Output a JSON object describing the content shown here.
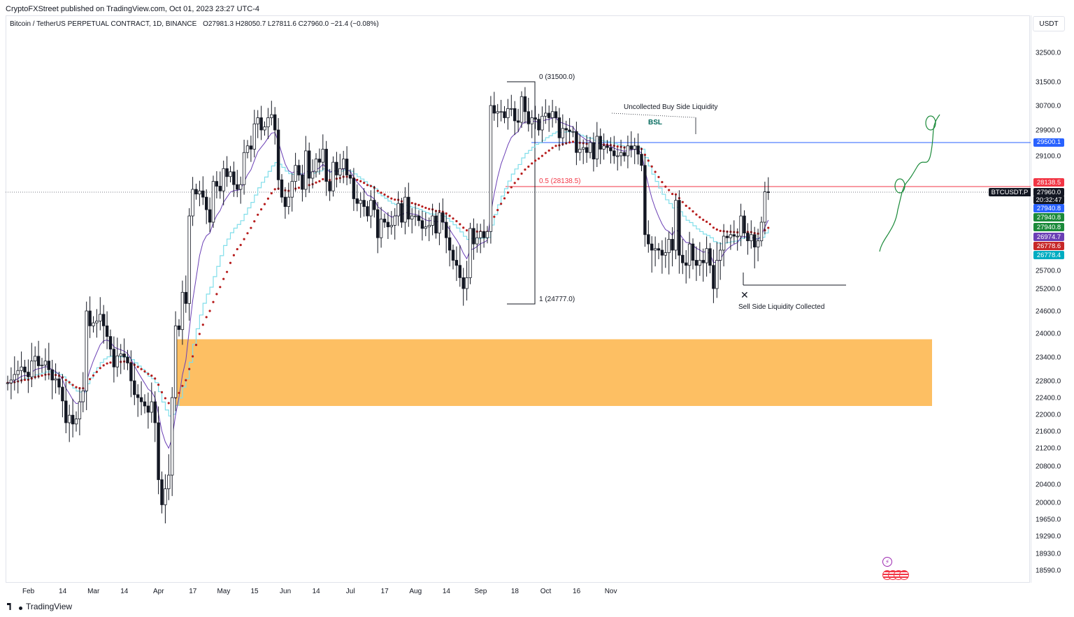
{
  "header": {
    "published": "CryptoFXStreet published on TradingView.com, Oct 01, 2023 23:27 UTC-4",
    "symbol": "Bitcoin / TetherUS PERPETUAL CONTRACT, 1D, BINANCE",
    "ohlc": "O27981.3  H28050.7  L27811.6  C27960.0  −21.4 (−0.08%)",
    "currency": "USDT"
  },
  "footer": {
    "brand": "TradingView"
  },
  "colors": {
    "up": "#131722",
    "down": "#131722",
    "zone": "#fdbf63",
    "blue_line": "#2962ff",
    "red_line": "#f23645",
    "dots": "#b71c1c",
    "step": "#80deea",
    "ma": "#6a3fb5",
    "green": "#1b8a3a"
  },
  "chart_data": {
    "type": "candlestick",
    "title": "",
    "xlabel": "",
    "ylabel": "",
    "ylim": [
      18250,
      32950
    ],
    "y_ticks": [
      32500,
      31500,
      30700,
      29900,
      29100,
      28500,
      27940,
      27300,
      26700,
      26100,
      25700,
      25200,
      24600,
      24000,
      23400,
      22800,
      22400,
      22000,
      21600,
      21200,
      20800,
      20400,
      20000,
      19650,
      19290,
      18930,
      18590
    ],
    "y_tick_labels": [
      "32500.0",
      "31500.0",
      "30700.0",
      "29900.0",
      "29100.0",
      "",
      "",
      "",
      "",
      "",
      "25700.0",
      "25200.0",
      "24600.0",
      "24000.0",
      "23400.0",
      "22800.0",
      "22400.0",
      "22000.0",
      "21600.0",
      "21200.0",
      "20800.0",
      "20400.0",
      "20000.0",
      "19650.0",
      "19290.0",
      "18930.0",
      "18590.0"
    ],
    "x_ticks": [
      {
        "label": "Feb",
        "day": 4
      },
      {
        "label": "14",
        "day": 14
      },
      {
        "label": "Mar",
        "day": 23
      },
      {
        "label": "14",
        "day": 32
      },
      {
        "label": "Apr",
        "day": 42
      },
      {
        "label": "17",
        "day": 52
      },
      {
        "label": "May",
        "day": 61
      },
      {
        "label": "15",
        "day": 70
      },
      {
        "label": "Jun",
        "day": 79
      },
      {
        "label": "14",
        "day": 88
      },
      {
        "label": "Jul",
        "day": 98
      },
      {
        "label": "17",
        "day": 108
      },
      {
        "label": "Aug",
        "day": 117
      },
      {
        "label": "14",
        "day": 126
      },
      {
        "label": "Sep",
        "day": 136
      },
      {
        "label": "18",
        "day": 146
      },
      {
        "label": "Oct",
        "day": 155
      },
      {
        "label": "16",
        "day": 164
      },
      {
        "label": "Nov",
        "day": 174
      }
    ],
    "closes": [
      22750,
      22820,
      22960,
      23060,
      23150,
      23020,
      22900,
      23300,
      23420,
      23180,
      23200,
      23300,
      23080,
      22820,
      22850,
      22650,
      22320,
      21800,
      21980,
      21770,
      21890,
      22300,
      22560,
      24600,
      24200,
      24280,
      24330,
      24510,
      24200,
      23920,
      23600,
      23150,
      23430,
      23480,
      23400,
      23250,
      22800,
      22470,
      22400,
      22300,
      22200,
      22050,
      22300,
      21800,
      20500,
      19950,
      20300,
      20600,
      22400,
      24200,
      24100,
      25100,
      24800,
      27200,
      28050,
      27900,
      28000,
      27800,
      27400,
      27000,
      28300,
      28150,
      28000,
      28700,
      28450,
      28600,
      28200,
      28050,
      28200,
      29200,
      29400,
      29300,
      30100,
      30300,
      29900,
      30000,
      30300,
      30400,
      29900,
      28350,
      27800,
      27500,
      27800,
      28300,
      28800,
      28500,
      28050,
      29250,
      28400,
      28600,
      29000,
      28900,
      29300,
      28300,
      28000,
      28900,
      28500,
      28700,
      29000,
      28500,
      28400,
      27750,
      27600,
      27700,
      27500,
      27200,
      27700,
      27400,
      26500,
      27100,
      27000,
      26850,
      26900,
      27200,
      27600,
      27000,
      27800,
      27100,
      27200,
      27200,
      27050,
      26800,
      26850,
      26900,
      27200,
      26650,
      27300,
      27000,
      26500,
      26100,
      25900,
      25800,
      25500,
      25200,
      25500,
      26800,
      26300,
      26500,
      26700,
      26500,
      26700,
      30700,
      30450,
      30500,
      30500,
      30300,
      30600,
      30600,
      30200,
      30150,
      31000,
      30500,
      30100,
      30300,
      30250,
      29900,
      30350,
      30450,
      30300,
      30500,
      30300,
      29650,
      29950,
      29900,
      29850,
      29850,
      29200,
      29300,
      29350,
      29200,
      29500,
      29000,
      29700,
      29300,
      29400,
      29350,
      29250,
      29100,
      29100,
      29200,
      29100,
      29400,
      29300,
      29400,
      29150,
      28800,
      26600,
      26300,
      26100,
      26150,
      26100,
      26000,
      26050,
      26450,
      26100,
      27700,
      26000,
      25850,
      25800,
      26300,
      25900,
      25800,
      25900,
      25850,
      26150,
      25800,
      25200,
      25900,
      26100,
      26550,
      26500,
      26600,
      26550,
      26550,
      27200,
      26650,
      26400,
      26600,
      26200,
      26400,
      27000,
      27970,
      27960
    ],
    "fib_levels": [
      {
        "label": "0 (31500.0)",
        "value": 31500
      },
      {
        "label": "0.5 (28138.5)",
        "value": 28138.5
      },
      {
        "label": "1 (24777.0)",
        "value": 24777
      }
    ],
    "horizontal_lines": [
      {
        "value": 29500.1,
        "label": "29500.1",
        "color": "#2962ff"
      },
      {
        "value": 28138.5,
        "label": "28138.5",
        "color": "#f23645"
      }
    ],
    "price_labels": [
      {
        "value": 28138.5,
        "text": "28138.5",
        "color": "#f23645"
      },
      {
        "value": 27960.0,
        "text": "27960.0",
        "color": "#131722"
      },
      {
        "value": 27940.8,
        "text": "27940.8",
        "color": "#2962ff"
      },
      {
        "value": 27940.8,
        "text": "27940.8",
        "color": "#1b8a3a"
      },
      {
        "value": 27940.8,
        "text": "27940.8",
        "color": "#1b8a3a"
      },
      {
        "value": 26974.7,
        "text": "26974.7",
        "color": "#6a3fb5"
      },
      {
        "value": 26778.6,
        "text": "26778.6",
        "color": "#c62828"
      },
      {
        "value": 26778.4,
        "text": "26778.4",
        "color": "#00acc1"
      }
    ],
    "countdown": "20:32:47",
    "symbol_tag": "BTCUSDT.P",
    "annotations": [
      {
        "text": "Uncollected Buy Side Liquidity"
      },
      {
        "text": "BSL"
      },
      {
        "text": "Sell Side Liquidity Collected"
      }
    ],
    "zone": {
      "from": 23850,
      "to": 22200
    },
    "legend": "none",
    "grid": false
  }
}
